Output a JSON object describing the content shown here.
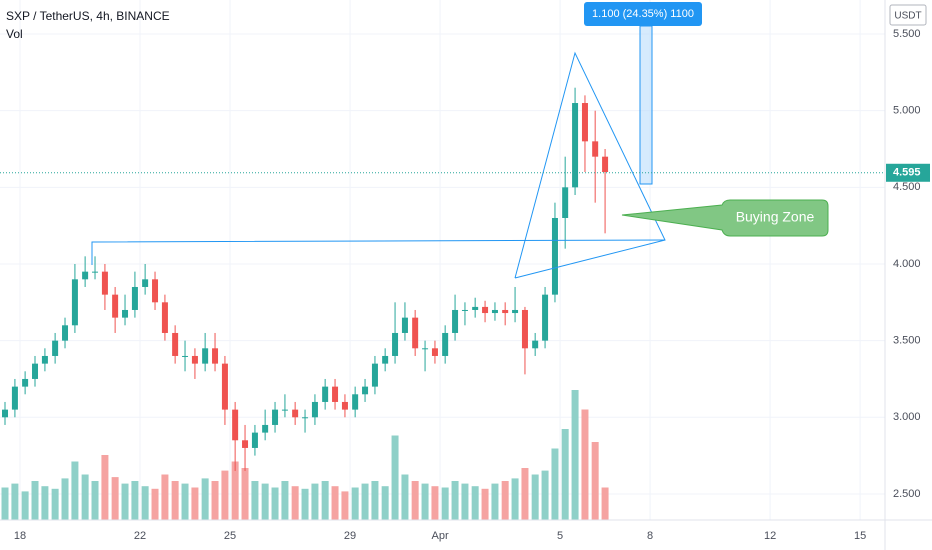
{
  "chart_data": {
    "type": "candlestick",
    "title": "SXP / TetherUS, 4h, BINANCE",
    "volume_label": "Vol",
    "currency": "USDT",
    "annotation": "Buying Zone",
    "measure_label": "1.100 (24.35%) 1100",
    "last_price": {
      "value": 4.595,
      "label": "4.595"
    },
    "up_color": "#26a69a",
    "down_color": "#ef5350",
    "up_volume_color": "#8fd0c8",
    "down_volume_color": "#f5a3a1",
    "xlim": [
      -0.667,
      28.83
    ],
    "xticks": [
      {
        "value": 0,
        "label": "18"
      },
      {
        "value": 4,
        "label": "22"
      },
      {
        "value": 7,
        "label": "25"
      },
      {
        "value": 11,
        "label": "29"
      },
      {
        "value": 14,
        "label": "Apr"
      },
      {
        "value": 18,
        "label": "5"
      },
      {
        "value": 21,
        "label": "8"
      },
      {
        "value": 25,
        "label": "12"
      },
      {
        "value": 28,
        "label": "15"
      }
    ],
    "ylim": [
      2.33,
      5.722
    ],
    "yticks": [
      {
        "value": 2.5,
        "label": "2.500"
      },
      {
        "value": 3,
        "label": "3.000"
      },
      {
        "value": 3.5,
        "label": "3.500"
      },
      {
        "value": 4,
        "label": "4.000"
      },
      {
        "value": 4.5,
        "label": "4.500"
      },
      {
        "value": 5,
        "label": "5.000"
      },
      {
        "value": 5.5,
        "label": "5.500"
      }
    ],
    "grid": true,
    "x": [
      -0.5,
      -0.17,
      0.17,
      0.5,
      0.83,
      1.17,
      1.5,
      1.83,
      2.17,
      2.5,
      2.83,
      3.17,
      3.5,
      3.83,
      4.17,
      4.5,
      4.83,
      5.17,
      5.5,
      5.83,
      6.17,
      6.5,
      6.83,
      7.17,
      7.5,
      7.83,
      8.17,
      8.5,
      8.83,
      9.17,
      9.5,
      9.83,
      10.17,
      10.5,
      10.83,
      11.17,
      11.5,
      11.83,
      12.17,
      12.5,
      12.83,
      13.17,
      13.5,
      13.83,
      14.17,
      14.5,
      14.83,
      15.17,
      15.5,
      15.83,
      16.17,
      16.5,
      16.83,
      17.17,
      17.5,
      17.83,
      18.17,
      18.5,
      18.83,
      19.17,
      19.5
    ],
    "open": [
      3.0,
      3.05,
      3.2,
      3.25,
      3.35,
      3.4,
      3.5,
      3.6,
      3.9,
      3.95,
      3.95,
      3.8,
      3.65,
      3.7,
      3.85,
      3.9,
      3.75,
      3.55,
      3.4,
      3.4,
      3.35,
      3.45,
      3.35,
      3.05,
      2.85,
      2.8,
      2.9,
      2.95,
      3.05,
      3.05,
      3.0,
      3.0,
      3.1,
      3.2,
      3.1,
      3.05,
      3.15,
      3.2,
      3.35,
      3.4,
      3.55,
      3.65,
      3.45,
      3.45,
      3.4,
      3.55,
      3.7,
      3.7,
      3.72,
      3.68,
      3.7,
      3.68,
      3.7,
      3.45,
      3.5,
      3.8,
      4.3,
      4.5,
      5.05,
      4.8,
      4.7
    ],
    "high": [
      3.1,
      3.25,
      3.3,
      3.4,
      3.45,
      3.55,
      3.65,
      4.0,
      4.05,
      4.05,
      4.0,
      3.85,
      3.8,
      3.95,
      4.0,
      3.95,
      3.8,
      3.6,
      3.5,
      3.45,
      3.55,
      3.55,
      3.4,
      3.1,
      2.95,
      2.95,
      3.05,
      3.1,
      3.15,
      3.1,
      3.05,
      3.15,
      3.25,
      3.25,
      3.15,
      3.2,
      3.25,
      3.4,
      3.45,
      3.75,
      3.75,
      3.7,
      3.5,
      3.5,
      3.6,
      3.8,
      3.75,
      3.78,
      3.76,
      3.75,
      3.75,
      3.85,
      3.72,
      3.55,
      3.85,
      4.4,
      4.7,
      5.15,
      5.1,
      5.0,
      4.75
    ],
    "low": [
      2.95,
      3.0,
      3.15,
      3.2,
      3.3,
      3.35,
      3.45,
      3.55,
      3.85,
      3.9,
      3.7,
      3.55,
      3.6,
      3.65,
      3.8,
      3.7,
      3.5,
      3.35,
      3.3,
      3.25,
      3.3,
      3.3,
      2.95,
      2.65,
      2.65,
      2.75,
      2.85,
      2.9,
      3.0,
      2.95,
      2.9,
      2.95,
      3.05,
      3.05,
      3.0,
      3.0,
      3.1,
      3.15,
      3.3,
      3.35,
      3.5,
      3.4,
      3.3,
      3.35,
      3.35,
      3.5,
      3.6,
      3.65,
      3.62,
      3.63,
      3.6,
      3.62,
      3.28,
      3.4,
      3.45,
      3.75,
      4.1,
      4.45,
      4.6,
      4.4,
      4.2
    ],
    "close": [
      3.05,
      3.2,
      3.25,
      3.35,
      3.4,
      3.5,
      3.6,
      3.9,
      3.95,
      3.95,
      3.8,
      3.65,
      3.7,
      3.85,
      3.9,
      3.75,
      3.55,
      3.4,
      3.4,
      3.35,
      3.45,
      3.35,
      3.05,
      2.85,
      2.8,
      2.9,
      2.95,
      3.05,
      3.05,
      3.0,
      3.0,
      3.1,
      3.2,
      3.1,
      3.05,
      3.15,
      3.2,
      3.35,
      3.4,
      3.55,
      3.65,
      3.45,
      3.45,
      3.4,
      3.55,
      3.7,
      3.7,
      3.72,
      3.68,
      3.7,
      3.68,
      3.7,
      3.45,
      3.5,
      3.8,
      4.3,
      4.5,
      5.05,
      4.8,
      4.7,
      4.6
    ],
    "volume": [
      25,
      28,
      22,
      30,
      26,
      24,
      32,
      45,
      35,
      30,
      50,
      33,
      28,
      30,
      26,
      24,
      35,
      30,
      28,
      25,
      32,
      30,
      38,
      45,
      40,
      30,
      28,
      25,
      30,
      26,
      24,
      28,
      30,
      26,
      22,
      25,
      28,
      30,
      26,
      65,
      35,
      30,
      28,
      26,
      25,
      30,
      28,
      26,
      24,
      28,
      30,
      32,
      40,
      35,
      38,
      55,
      70,
      100,
      85,
      60,
      25
    ]
  }
}
